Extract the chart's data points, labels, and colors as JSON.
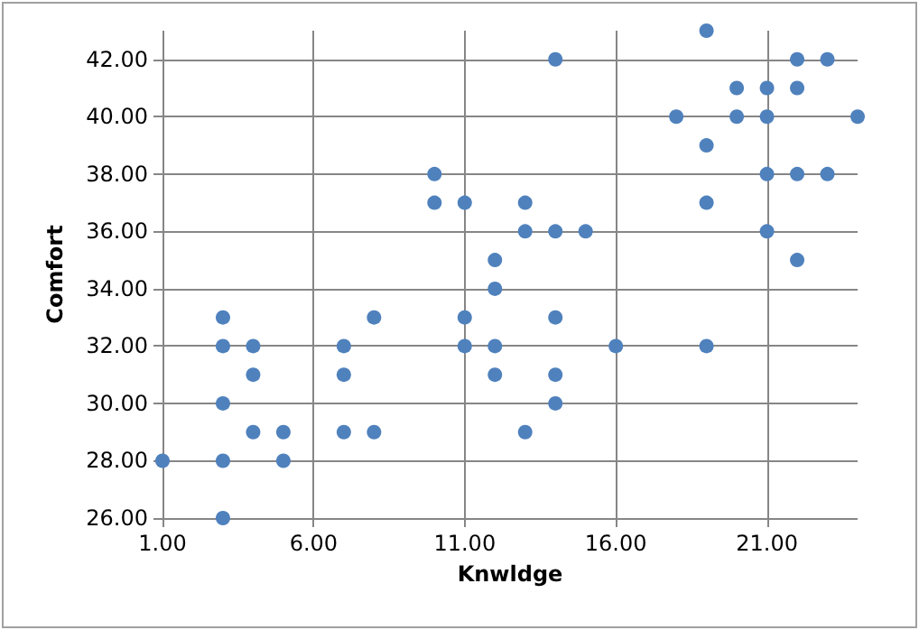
{
  "chart_data": {
    "type": "scatter",
    "xlabel": "Knwldge",
    "ylabel": "Comfort",
    "x": [
      1,
      3,
      3,
      3,
      3,
      3,
      4,
      4,
      4,
      5,
      5,
      7,
      7,
      7,
      8,
      8,
      10,
      10,
      11,
      11,
      11,
      12,
      12,
      12,
      12,
      13,
      13,
      13,
      14,
      14,
      14,
      14,
      14,
      15,
      16,
      18,
      19,
      19,
      19,
      19,
      20,
      20,
      21,
      21,
      21,
      21,
      22,
      22,
      22,
      22,
      23,
      23,
      24
    ],
    "series": [
      {
        "color": "#4f81bd",
        "values": [
          28,
          33,
          32,
          30,
          28,
          26,
          32,
          31,
          29,
          29,
          28,
          32,
          31,
          29,
          33,
          29,
          38,
          37,
          37,
          33,
          32,
          35,
          34,
          32,
          31,
          37,
          36,
          29,
          42,
          36,
          33,
          31,
          30,
          36,
          32,
          40,
          43,
          39,
          37,
          32,
          41,
          40,
          41,
          40,
          38,
          36,
          42,
          41,
          38,
          35,
          42,
          38,
          40
        ]
      }
    ],
    "xlim": [
      1,
      24
    ],
    "ylim": [
      26,
      43
    ],
    "xticks": [
      {
        "value": 1,
        "label": "1.00"
      },
      {
        "value": 6,
        "label": "6.00"
      },
      {
        "value": 11,
        "label": "11.00"
      },
      {
        "value": 16,
        "label": "16.00"
      },
      {
        "value": 21,
        "label": "21.00"
      }
    ],
    "yticks": [
      {
        "value": 26,
        "label": "26.00"
      },
      {
        "value": 28,
        "label": "28.00"
      },
      {
        "value": 30,
        "label": "30.00"
      },
      {
        "value": 32,
        "label": "32.00"
      },
      {
        "value": 34,
        "label": "34.00"
      },
      {
        "value": 36,
        "label": "36.00"
      },
      {
        "value": 38,
        "label": "38.00"
      },
      {
        "value": 40,
        "label": "40.00"
      },
      {
        "value": 42,
        "label": "42.00"
      }
    ],
    "grid": true,
    "marker": "circle"
  }
}
